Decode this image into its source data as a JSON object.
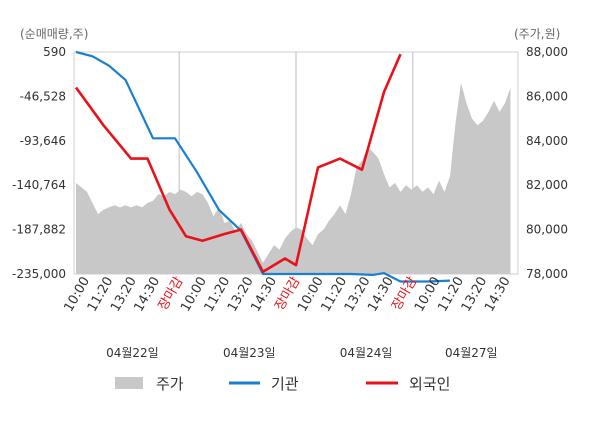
{
  "chart_data": {
    "type": "line",
    "left_axis_title": "(순매매량,주)",
    "right_axis_title": "(주가,원)",
    "left_ticks": [
      590,
      -46528,
      -93646,
      -140764,
      -187882,
      -235000
    ],
    "left_tick_labels": [
      "590",
      "-46,528",
      "-93,646",
      "-140,764",
      "-187,882",
      "-235,000"
    ],
    "left_ylim": [
      -235000,
      590
    ],
    "right_ticks": [
      88000,
      86000,
      84000,
      82000,
      80000,
      78000
    ],
    "right_tick_labels": [
      "88,000",
      "86,000",
      "84,000",
      "82,000",
      "80,000",
      "78,000"
    ],
    "right_ylim": [
      78000,
      88000
    ],
    "x_tick_labels": [
      {
        "text": "10:00",
        "red": false
      },
      {
        "text": "11:20",
        "red": false
      },
      {
        "text": "13:20",
        "red": false
      },
      {
        "text": "14:30",
        "red": false
      },
      {
        "text": "장마감",
        "red": true
      },
      {
        "text": "10:00",
        "red": false
      },
      {
        "text": "11:20",
        "red": false
      },
      {
        "text": "13:20",
        "red": false
      },
      {
        "text": "14:30",
        "red": false
      },
      {
        "text": "장마감",
        "red": true
      },
      {
        "text": "10:00",
        "red": false
      },
      {
        "text": "11:20",
        "red": false
      },
      {
        "text": "13:20",
        "red": false
      },
      {
        "text": "14:30",
        "red": false
      },
      {
        "text": "장마감",
        "red": true
      },
      {
        "text": "10:00",
        "red": false
      },
      {
        "text": "11:20",
        "red": false
      },
      {
        "text": "13:20",
        "red": false
      },
      {
        "text": "14:30",
        "red": false
      }
    ],
    "dates": [
      "04월22일",
      "04월23일",
      "04월24일",
      "04월27일"
    ],
    "legend": [
      "주가",
      "기관",
      "외국인"
    ],
    "colors": {
      "price": "#c8c8c8",
      "institution": "#1a7fd0",
      "foreign": "#e8121b"
    },
    "price_series": [
      [
        0,
        82100
      ],
      [
        1,
        81900
      ],
      [
        2,
        81700
      ],
      [
        3,
        81200
      ],
      [
        4,
        80700
      ],
      [
        5,
        80900
      ],
      [
        6,
        81000
      ],
      [
        7,
        81100
      ],
      [
        8,
        81000
      ],
      [
        9,
        81100
      ],
      [
        10,
        81000
      ],
      [
        11,
        81100
      ],
      [
        12,
        81000
      ],
      [
        13,
        81200
      ],
      [
        14,
        81300
      ],
      [
        15,
        81600
      ],
      [
        16,
        81500
      ],
      [
        17,
        81700
      ],
      [
        18,
        81600
      ],
      [
        19,
        81800
      ],
      [
        20,
        81700
      ],
      [
        21,
        81500
      ],
      [
        22,
        81700
      ],
      [
        23,
        81600
      ],
      [
        24,
        81200
      ],
      [
        25,
        80600
      ],
      [
        26,
        81000
      ],
      [
        27,
        80300
      ],
      [
        28,
        80400
      ],
      [
        29,
        79900
      ],
      [
        30,
        80300
      ],
      [
        31,
        79800
      ],
      [
        32,
        79500
      ],
      [
        33,
        79000
      ],
      [
        34,
        78500
      ],
      [
        35,
        78900
      ],
      [
        36,
        79300
      ],
      [
        37,
        79100
      ],
      [
        38,
        79600
      ],
      [
        39,
        79900
      ],
      [
        40,
        80100
      ],
      [
        41,
        80000
      ],
      [
        42,
        79600
      ],
      [
        43,
        79300
      ],
      [
        44,
        79800
      ],
      [
        45,
        80000
      ],
      [
        46,
        80400
      ],
      [
        47,
        80700
      ],
      [
        48,
        81100
      ],
      [
        49,
        80700
      ],
      [
        50,
        81600
      ],
      [
        51,
        82800
      ],
      [
        52,
        83100
      ],
      [
        53,
        83700
      ],
      [
        54,
        83500
      ],
      [
        55,
        83200
      ],
      [
        56,
        82500
      ],
      [
        57,
        81900
      ],
      [
        58,
        82100
      ],
      [
        59,
        81700
      ],
      [
        60,
        82000
      ],
      [
        61,
        81800
      ],
      [
        62,
        82000
      ],
      [
        63,
        81700
      ],
      [
        64,
        81900
      ],
      [
        65,
        81600
      ],
      [
        66,
        82200
      ],
      [
        67,
        81700
      ],
      [
        68,
        82400
      ],
      [
        69,
        84800
      ],
      [
        70,
        86600
      ],
      [
        71,
        85700
      ],
      [
        72,
        85000
      ],
      [
        73,
        84700
      ],
      [
        74,
        84900
      ],
      [
        75,
        85300
      ],
      [
        76,
        85800
      ],
      [
        77,
        85300
      ],
      [
        78,
        85700
      ],
      [
        79,
        86400
      ]
    ],
    "institution_series": [
      [
        0,
        590
      ],
      [
        3,
        -4000
      ],
      [
        6,
        -14000
      ],
      [
        9,
        -29000
      ],
      [
        14,
        -91000
      ],
      [
        18,
        -91000
      ],
      [
        22,
        -127000
      ],
      [
        26,
        -167000
      ],
      [
        30,
        -189000
      ],
      [
        34,
        -235000
      ],
      [
        38,
        -235000
      ],
      [
        42,
        -235000
      ],
      [
        46,
        -235000
      ],
      [
        50,
        -235000
      ],
      [
        54,
        -236000
      ],
      [
        56,
        -234000
      ],
      [
        59,
        -243000
      ],
      [
        64,
        -243000
      ],
      [
        68,
        -242000
      ]
    ],
    "foreign_series": [
      [
        0,
        86400
      ],
      [
        5,
        84700
      ],
      [
        10,
        83200
      ],
      [
        13,
        83200
      ],
      [
        17,
        80900
      ],
      [
        20,
        79700
      ],
      [
        23,
        79500
      ],
      [
        27,
        79800
      ],
      [
        30,
        80000
      ],
      [
        34,
        78100
      ],
      [
        38,
        78700
      ],
      [
        40,
        78400
      ],
      [
        44,
        82800
      ],
      [
        48,
        83200
      ],
      [
        52,
        82700
      ],
      [
        56,
        86200
      ],
      [
        59,
        87900
      ]
    ]
  }
}
